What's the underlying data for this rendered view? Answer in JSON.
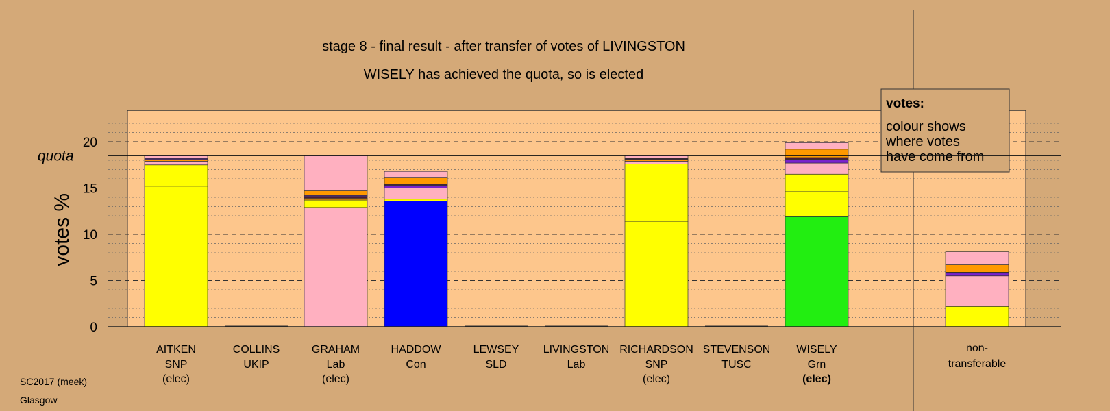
{
  "chart_data": {
    "type": "bar",
    "stacked": true,
    "title": "stage 8 - final result - after transfer of votes of LIVINGSTON",
    "subtitle": "WISELY has achieved the quota, so is elected",
    "ylabel": "votes %",
    "ylim": [
      0,
      23.5
    ],
    "yticks": [
      0,
      5,
      10,
      15,
      20
    ],
    "quota": 18.5,
    "quota_label": "quota",
    "grid": "dashed major, dotted minor",
    "legend": {
      "title": "votes:",
      "lines": [
        "colour shows",
        "where votes",
        "have come from"
      ],
      "placement": "top-right"
    },
    "colors": {
      "SNP": "#ffff00",
      "Lab": "#ffb0c0",
      "Con": "#0000ff",
      "Grn": "#22ee11",
      "LD": "#ff9900",
      "purple": "#7a22cc",
      "dark": "#4a1a3a"
    },
    "categories": [
      {
        "name": "AITKEN",
        "party": "SNP",
        "status": "(elec)",
        "status_bold": false,
        "segments": [
          {
            "value": 15.2,
            "color": "#ffff00"
          },
          {
            "value": 2.3,
            "color": "#ffff00"
          },
          {
            "value": 0.4,
            "color": "#ffb0c0"
          },
          {
            "value": 0.2,
            "color": "#ff9900"
          },
          {
            "value": 0.1,
            "color": "#7a22cc"
          },
          {
            "value": 0.3,
            "color": "#ffb0c0"
          }
        ]
      },
      {
        "name": "COLLINS",
        "party": "UKIP",
        "status": "",
        "status_bold": false,
        "segments": []
      },
      {
        "name": "GRAHAM",
        "party": "Lab",
        "status": "(elec)",
        "status_bold": false,
        "segments": [
          {
            "value": 12.9,
            "color": "#ffb0c0"
          },
          {
            "value": 0.8,
            "color": "#ffff00"
          },
          {
            "value": 0.2,
            "color": "#ff9900"
          },
          {
            "value": 0.2,
            "color": "#4a1a3a"
          },
          {
            "value": 0.1,
            "color": "#7a22cc"
          },
          {
            "value": 0.5,
            "color": "#ff9900"
          },
          {
            "value": 3.8,
            "color": "#ffb0c0"
          }
        ]
      },
      {
        "name": "HADDOW",
        "party": "Con",
        "status": "",
        "status_bold": false,
        "segments": [
          {
            "value": 13.6,
            "color": "#0000ff"
          },
          {
            "value": 0.2,
            "color": "#ffff00"
          },
          {
            "value": 1.2,
            "color": "#ffb0c0"
          },
          {
            "value": 0.3,
            "color": "#7a22cc"
          },
          {
            "value": 0.1,
            "color": "#4a1a3a"
          },
          {
            "value": 0.7,
            "color": "#ff9900"
          },
          {
            "value": 0.7,
            "color": "#ffb0c0"
          }
        ]
      },
      {
        "name": "LEWSEY",
        "party": "SLD",
        "status": "",
        "status_bold": false,
        "segments": []
      },
      {
        "name": "LIVINGSTON",
        "party": "Lab",
        "status": "",
        "status_bold": false,
        "segments": []
      },
      {
        "name": "RICHARDSON",
        "party": "SNP",
        "status": "(elec)",
        "status_bold": false,
        "segments": [
          {
            "value": 11.4,
            "color": "#ffff00"
          },
          {
            "value": 6.2,
            "color": "#ffff00"
          },
          {
            "value": 0.3,
            "color": "#ffb0c0"
          },
          {
            "value": 0.2,
            "color": "#ff9900"
          },
          {
            "value": 0.1,
            "color": "#4a1a3a"
          },
          {
            "value": 0.3,
            "color": "#ffb0c0"
          }
        ]
      },
      {
        "name": "STEVENSON",
        "party": "TUSC",
        "status": "",
        "status_bold": false,
        "segments": []
      },
      {
        "name": "WISELY",
        "party": "Grn",
        "status": "(elec)",
        "status_bold": true,
        "segments": [
          {
            "value": 11.9,
            "color": "#22ee11"
          },
          {
            "value": 2.7,
            "color": "#ffff00"
          },
          {
            "value": 1.9,
            "color": "#ffff00"
          },
          {
            "value": 1.2,
            "color": "#ffb0c0"
          },
          {
            "value": 0.4,
            "color": "#7a22cc"
          },
          {
            "value": 0.2,
            "color": "#4a1a3a"
          },
          {
            "value": 0.9,
            "color": "#ff9900"
          },
          {
            "value": 0.7,
            "color": "#ffb0c0"
          }
        ]
      }
    ],
    "nontransferable": {
      "label_line1": "non-",
      "label_line2": "transferable",
      "segments": [
        {
          "value": 1.6,
          "color": "#ffff00"
        },
        {
          "value": 0.6,
          "color": "#ffff00"
        },
        {
          "value": 3.3,
          "color": "#ffb0c0"
        },
        {
          "value": 0.3,
          "color": "#7a22cc"
        },
        {
          "value": 0.1,
          "color": "#4a1a3a"
        },
        {
          "value": 0.8,
          "color": "#ff9900"
        },
        {
          "value": 1.4,
          "color": "#ffb0c0"
        }
      ]
    }
  },
  "footer": {
    "line1": "SC2017 (meek)",
    "line2": "Glasgow"
  }
}
